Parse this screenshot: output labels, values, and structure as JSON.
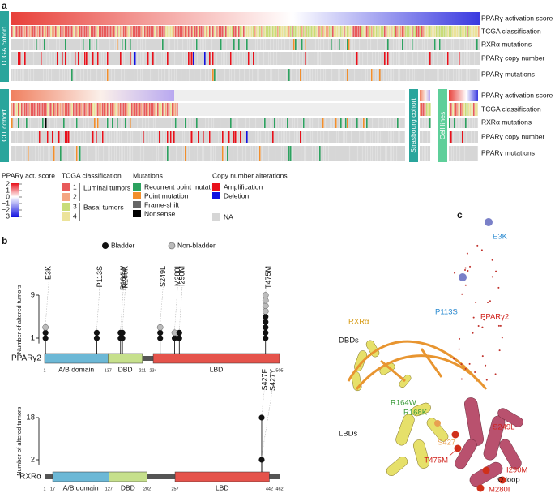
{
  "panels": {
    "a": "a",
    "b": "b",
    "c": "c"
  },
  "heatmap": {
    "cohorts": [
      "TCGA cohort",
      "CIT cohort",
      "Strasbourg cohort",
      "Cell lines"
    ],
    "tracks": [
      "PPARγ activation score",
      "TCGA classification",
      "RXRα mutations",
      "PPARγ copy number",
      "PPARγ mutations"
    ]
  },
  "legend": {
    "score": {
      "title": "PPARγ act. score",
      "range": [
        -3,
        2
      ],
      "ticks": [
        2,
        1,
        0,
        {
          "value": -1,
          "label": "−1"
        },
        {
          "value": -2,
          "label": "−2"
        },
        {
          "value": -3,
          "label": "−3"
        }
      ]
    },
    "classification": {
      "title": "TCGA classification",
      "items": [
        {
          "label": "1",
          "color": "#e85a5a"
        },
        {
          "label": "2",
          "color": "#f4a582"
        },
        {
          "label": "3",
          "color": "#c8dc78"
        },
        {
          "label": "4",
          "color": "#ece39a"
        }
      ],
      "groups": [
        "Luminal tumors",
        "Basal tumors"
      ]
    },
    "mutations": {
      "title": "Mutations",
      "items": [
        {
          "label": "Recurrent point mutation",
          "color": "#2ca25f"
        },
        {
          "label": "Point mutation",
          "color": "#f28e2b"
        },
        {
          "label": "Frame-shift",
          "color": "#666666"
        },
        {
          "label": "Nonsense",
          "color": "#000000"
        }
      ]
    },
    "cna": {
      "title": "Copy number alterations",
      "items": [
        {
          "label": "Amplification",
          "color": "#e8101a"
        },
        {
          "label": "Deletion",
          "color": "#1010e0"
        }
      ],
      "na": "NA"
    }
  },
  "lollipop": {
    "legend": [
      "Bladder",
      "Non-bladder"
    ],
    "ylabel": "Number of altered tumors",
    "proteins": [
      {
        "name": "PPARγ2",
        "length": [
          1,
          505
        ],
        "yticks": [
          1,
          9
        ],
        "ylim": [
          0,
          9
        ],
        "positions": [
          1,
          137,
          211,
          234,
          505
        ],
        "domains": [
          {
            "name": "A/B domain",
            "start": 1,
            "end": 137,
            "color": "#6cb8d6"
          },
          {
            "name": "DBD",
            "start": 137,
            "end": 211,
            "color": "#c6e08c"
          },
          {
            "name": "LBD",
            "start": 234,
            "end": 505,
            "color": "#e5534b"
          }
        ],
        "mutations": [
          {
            "label": "E3K",
            "position": 3,
            "bladder": 2,
            "non_bladder": 1
          },
          {
            "label": "P113S",
            "position": 113,
            "bladder": 2,
            "non_bladder": 0
          },
          {
            "label": "R164W",
            "position": 164,
            "bladder": 2,
            "non_bladder": 0
          },
          {
            "label": "R168K",
            "position": 168,
            "bladder": 2,
            "non_bladder": 0
          },
          {
            "label": "S249L",
            "position": 249,
            "bladder": 2,
            "non_bladder": 1
          },
          {
            "label": "M280I",
            "position": 280,
            "bladder": 1,
            "non_bladder": 1
          },
          {
            "label": "I290M",
            "position": 290,
            "bladder": 2,
            "non_bladder": 0
          },
          {
            "label": "T475M",
            "position": 475,
            "bladder": 5,
            "non_bladder": 4
          }
        ]
      },
      {
        "name": "RXRα",
        "length": [
          1,
          462
        ],
        "yticks": [
          2,
          18
        ],
        "ylim": [
          0,
          18
        ],
        "positions": [
          1,
          17,
          127,
          202,
          257,
          442,
          462
        ],
        "domains": [
          {
            "name": "A/B domain",
            "start": 17,
            "end": 127,
            "color": "#6cb8d6"
          },
          {
            "name": "DBD",
            "start": 127,
            "end": 202,
            "color": "#c6e08c"
          },
          {
            "name": "LBD",
            "start": 257,
            "end": 442,
            "color": "#e5534b"
          }
        ],
        "mutations": [
          {
            "label": "S427F",
            "position": 427,
            "bladder": 18,
            "non_bladder": 0
          },
          {
            "label": "S427Y",
            "position": 427,
            "bladder": 2,
            "non_bladder": 0
          }
        ]
      }
    ]
  },
  "structure": {
    "labels": [
      "RXRα",
      "DBDs",
      "P113S",
      "PPARγ2",
      "E3K",
      "R164W",
      "R168K",
      "LBDs",
      "S249L",
      "S427",
      "T475M",
      "I290M",
      "Ω loop",
      "M280I"
    ]
  }
}
